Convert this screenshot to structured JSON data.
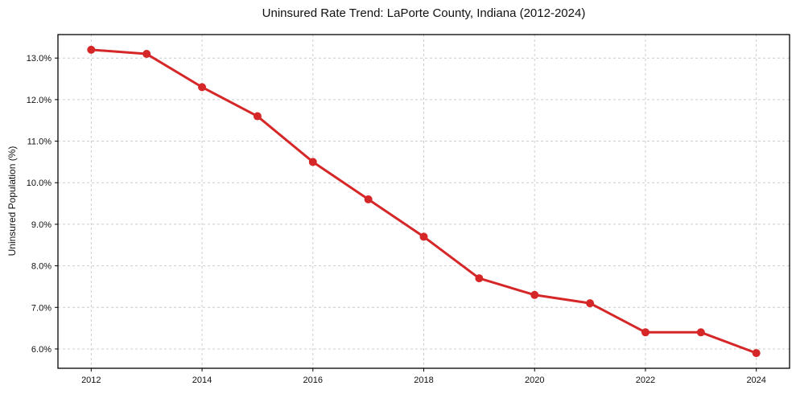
{
  "chart_data": {
    "type": "line",
    "title": "Uninsured Rate Trend: LaPorte County, Indiana (2012-2024)",
    "xlabel": "",
    "ylabel": "Uninsured Population (%)",
    "x": [
      2012,
      2013,
      2014,
      2015,
      2016,
      2017,
      2018,
      2019,
      2020,
      2021,
      2022,
      2023,
      2024
    ],
    "series": [
      {
        "name": "Uninsured rate",
        "values": [
          13.2,
          13.1,
          12.3,
          11.6,
          10.5,
          9.6,
          8.7,
          7.7,
          7.3,
          7.1,
          6.4,
          6.4,
          5.9
        ]
      }
    ],
    "x_ticks": {
      "values": [
        2012,
        2014,
        2016,
        2018,
        2020,
        2022,
        2024
      ],
      "labels": [
        "2012",
        "2014",
        "2016",
        "2018",
        "2020",
        "2022",
        "2024"
      ]
    },
    "y_ticks": {
      "values": [
        6,
        7,
        8,
        9,
        10,
        11,
        12,
        13
      ],
      "labels": [
        "6.0%",
        "7.0%",
        "8.0%",
        "9.0%",
        "10.0%",
        "11.0%",
        "12.0%",
        "13.0%"
      ]
    },
    "xlim": [
      2011.4,
      2024.6
    ],
    "ylim": [
      5.535,
      13.565
    ],
    "grid": true,
    "grid_style": "dashed",
    "legend": "none",
    "marker": "circle",
    "colors": {
      "line": "#d62728",
      "marker": "#d62728",
      "grid": "#cccccc",
      "axis": "#000000",
      "text": "#111111",
      "background": "#ffffff"
    }
  }
}
